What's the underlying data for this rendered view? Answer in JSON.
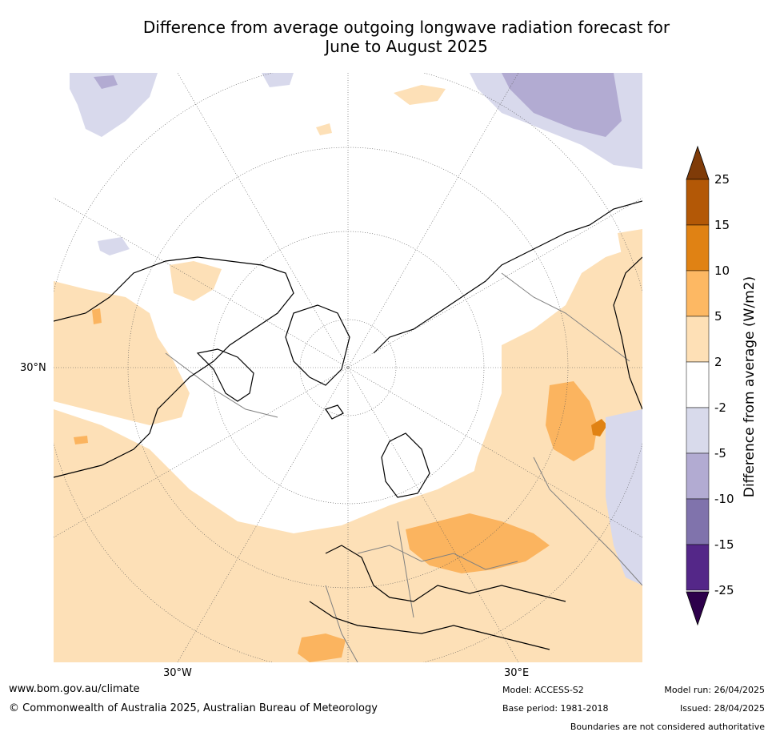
{
  "title": {
    "line1": "Difference from average outgoing longwave radiation forecast for",
    "line2": "June to August 2025"
  },
  "map": {
    "projection": "polar-stereographic-north",
    "labels": {
      "lat_30n": "30°N",
      "lon_30w": "30°W",
      "lon_30e": "30°E"
    },
    "colors": {
      "ocean_and_neutral": "#ffffff",
      "pos_2_5": "#fde0b7",
      "pos_5_10": "#fbb45f",
      "pos_10_15": "#e08214",
      "neg_2_5": "#d8d9ec",
      "neg_5_10": "#b2abd2",
      "coast": "#000000",
      "border": "#808080",
      "grid": "#555555"
    }
  },
  "colorbar": {
    "title": "Difference from average (W/m2)",
    "ticks": [
      "25",
      "15",
      "10",
      "5",
      "2",
      "-2",
      "-5",
      "-10",
      "-15",
      "-25"
    ],
    "segments": [
      "#b35806",
      "#e08214",
      "#fdb863",
      "#fee0b6",
      "#ffffff",
      "#d8daeb",
      "#b2abd2",
      "#8073ac",
      "#542788"
    ],
    "top_arrow_color": "#7f3b08",
    "bottom_arrow_color": "#2d004b"
  },
  "footer": {
    "url": "www.bom.gov.au/climate",
    "copyright": "© Commonwealth of Australia 2025, Australian Bureau of Meteorology",
    "model": "Model: ACCESS-S2",
    "base_period": "Base period: 1981-2018",
    "model_run": "Model run: 26/04/2025",
    "issued": "Issued: 28/04/2025",
    "disclaimer": "Boundaries are not considered authoritative"
  }
}
